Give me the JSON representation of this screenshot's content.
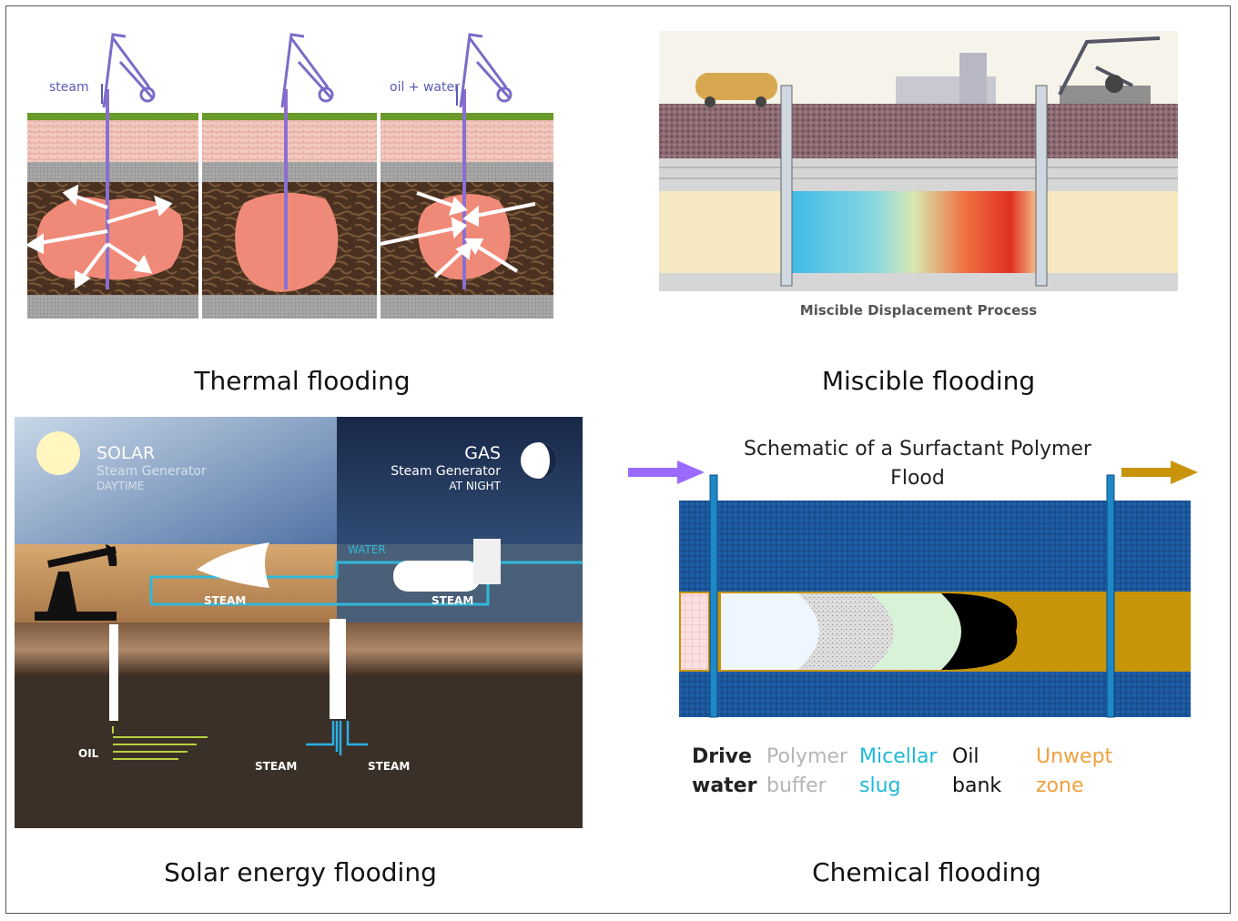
{
  "captions": {
    "thermal": "Thermal flooding",
    "miscible": "Miscible flooding",
    "solar": "Solar energy flooding",
    "chemical": "Chemical flooding"
  },
  "thermal": {
    "steam_label": "steam",
    "oil_water_label": "oil + water"
  },
  "miscible": {
    "title": "Miscible Displacement Process"
  },
  "solar": {
    "solar_title": "SOLAR",
    "solar_sub": "Steam Generator",
    "solar_time": "DAYTIME",
    "gas_title": "GAS",
    "gas_sub": "Steam Generator",
    "gas_time": "AT NIGHT",
    "water": "WATER",
    "steam_left": "STEAM",
    "steam_right": "STEAM",
    "oil": "OIL",
    "steam_bottom_left": "STEAM",
    "steam_bottom_right": "STEAM"
  },
  "chemical": {
    "title_line1": "Schematic of a Surfactant Polymer",
    "title_line2": "Flood",
    "legend": [
      {
        "line1": "Drive",
        "line2": "water",
        "color": "#222222"
      },
      {
        "line1": "Polymer",
        "line2": "buffer",
        "color": "#b5b5b5"
      },
      {
        "line1": "Micellar",
        "line2": "slug",
        "color": "#1fb8d8"
      },
      {
        "line1": "Oil",
        "line2": "bank",
        "color": "#111111"
      },
      {
        "line1": "Unwept",
        "line2": "zone",
        "color": "#f0a040"
      }
    ]
  }
}
